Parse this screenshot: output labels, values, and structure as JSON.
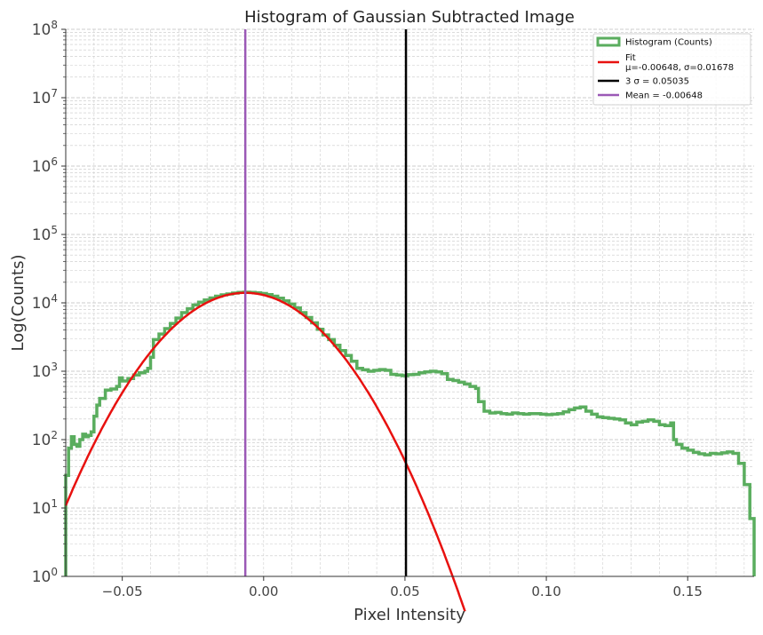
{
  "chart_data": {
    "type": "histogram",
    "title": "Histogram of Gaussian Subtracted Image",
    "xlabel": "Pixel Intensity",
    "ylabel": "Log(Counts)",
    "xlim": [
      -0.07,
      0.1735
    ],
    "ylim": [
      1,
      100000000
    ],
    "yscale": "log",
    "grid": true,
    "legend_position": "top-right",
    "x_ticks": [
      {
        "value": -0.05,
        "label": "−0.05"
      },
      {
        "value": 0.0,
        "label": "0.00"
      },
      {
        "value": 0.05,
        "label": "0.05"
      },
      {
        "value": 0.1,
        "label": "0.10"
      },
      {
        "value": 0.15,
        "label": "0.15"
      }
    ],
    "y_ticks": [
      {
        "exp": 0,
        "base": "10",
        "sup": "0"
      },
      {
        "exp": 1,
        "base": "10",
        "sup": "1"
      },
      {
        "exp": 2,
        "base": "10",
        "sup": "2"
      },
      {
        "exp": 3,
        "base": "10",
        "sup": "3"
      },
      {
        "exp": 4,
        "base": "10",
        "sup": "4"
      },
      {
        "exp": 5,
        "base": "10",
        "sup": "5"
      },
      {
        "exp": 6,
        "base": "10",
        "sup": "6"
      },
      {
        "exp": 7,
        "base": "10",
        "sup": "7"
      },
      {
        "exp": 8,
        "base": "10",
        "sup": "8"
      }
    ],
    "histogram": {
      "name": "Histogram (Counts)",
      "color": "#5aad5e",
      "bin_start": -0.07,
      "bin_width": 0.001,
      "points": [
        [
          -0.07,
          30
        ],
        [
          -0.069,
          75
        ],
        [
          -0.068,
          110
        ],
        [
          -0.067,
          85
        ],
        [
          -0.066,
          80
        ],
        [
          -0.065,
          100
        ],
        [
          -0.064,
          120
        ],
        [
          -0.063,
          110
        ],
        [
          -0.062,
          115
        ],
        [
          -0.061,
          130
        ],
        [
          -0.06,
          220
        ],
        [
          -0.059,
          320
        ],
        [
          -0.058,
          400
        ],
        [
          -0.056,
          530
        ],
        [
          -0.054,
          550
        ],
        [
          -0.052,
          600
        ],
        [
          -0.051,
          800
        ],
        [
          -0.05,
          720
        ],
        [
          -0.048,
          780
        ],
        [
          -0.046,
          880
        ],
        [
          -0.044,
          950
        ],
        [
          -0.042,
          1000
        ],
        [
          -0.041,
          1100
        ],
        [
          -0.04,
          1600
        ],
        [
          -0.039,
          2900
        ],
        [
          -0.037,
          3500
        ],
        [
          -0.035,
          4200
        ],
        [
          -0.033,
          5000
        ],
        [
          -0.031,
          6000
        ],
        [
          -0.029,
          7200
        ],
        [
          -0.027,
          8200
        ],
        [
          -0.025,
          9300
        ],
        [
          -0.023,
          10200
        ],
        [
          -0.021,
          11000
        ],
        [
          -0.019,
          11800
        ],
        [
          -0.017,
          12500
        ],
        [
          -0.015,
          13100
        ],
        [
          -0.013,
          13500
        ],
        [
          -0.011,
          13900
        ],
        [
          -0.009,
          14200
        ],
        [
          -0.007,
          14300
        ],
        [
          -0.005,
          14200
        ],
        [
          -0.003,
          14000
        ],
        [
          -0.001,
          13700
        ],
        [
          0.001,
          13200
        ],
        [
          0.003,
          12500
        ],
        [
          0.005,
          11700
        ],
        [
          0.007,
          10700
        ],
        [
          0.009,
          9600
        ],
        [
          0.011,
          8400
        ],
        [
          0.013,
          7200
        ],
        [
          0.015,
          6100
        ],
        [
          0.017,
          5100
        ],
        [
          0.019,
          4100
        ],
        [
          0.021,
          3400
        ],
        [
          0.023,
          2900
        ],
        [
          0.025,
          2400
        ],
        [
          0.027,
          2000
        ],
        [
          0.029,
          1700
        ],
        [
          0.031,
          1400
        ],
        [
          0.033,
          1100
        ],
        [
          0.035,
          1050
        ],
        [
          0.037,
          1000
        ],
        [
          0.039,
          1030
        ],
        [
          0.041,
          1060
        ],
        [
          0.043,
          1030
        ],
        [
          0.045,
          900
        ],
        [
          0.047,
          880
        ],
        [
          0.049,
          860
        ],
        [
          0.051,
          890
        ],
        [
          0.053,
          900
        ],
        [
          0.055,
          950
        ],
        [
          0.057,
          980
        ],
        [
          0.059,
          1000
        ],
        [
          0.061,
          980
        ],
        [
          0.063,
          920
        ],
        [
          0.065,
          760
        ],
        [
          0.067,
          730
        ],
        [
          0.069,
          690
        ],
        [
          0.071,
          650
        ],
        [
          0.073,
          600
        ],
        [
          0.075,
          560
        ],
        [
          0.076,
          360
        ],
        [
          0.078,
          260
        ],
        [
          0.08,
          245
        ],
        [
          0.082,
          250
        ],
        [
          0.084,
          240
        ],
        [
          0.086,
          235
        ],
        [
          0.088,
          245
        ],
        [
          0.09,
          240
        ],
        [
          0.092,
          235
        ],
        [
          0.094,
          240
        ],
        [
          0.096,
          240
        ],
        [
          0.098,
          235
        ],
        [
          0.1,
          232
        ],
        [
          0.102,
          235
        ],
        [
          0.104,
          240
        ],
        [
          0.106,
          255
        ],
        [
          0.108,
          275
        ],
        [
          0.11,
          290
        ],
        [
          0.112,
          300
        ],
        [
          0.114,
          260
        ],
        [
          0.116,
          235
        ],
        [
          0.118,
          215
        ],
        [
          0.12,
          210
        ],
        [
          0.122,
          205
        ],
        [
          0.124,
          200
        ],
        [
          0.126,
          195
        ],
        [
          0.128,
          175
        ],
        [
          0.13,
          165
        ],
        [
          0.132,
          180
        ],
        [
          0.134,
          185
        ],
        [
          0.136,
          195
        ],
        [
          0.138,
          185
        ],
        [
          0.14,
          165
        ],
        [
          0.142,
          160
        ],
        [
          0.144,
          175
        ],
        [
          0.145,
          100
        ],
        [
          0.146,
          85
        ],
        [
          0.148,
          75
        ],
        [
          0.15,
          70
        ],
        [
          0.152,
          65
        ],
        [
          0.154,
          62
        ],
        [
          0.156,
          60
        ],
        [
          0.158,
          63
        ],
        [
          0.16,
          62
        ],
        [
          0.162,
          64
        ],
        [
          0.164,
          66
        ],
        [
          0.166,
          63
        ],
        [
          0.168,
          45
        ],
        [
          0.17,
          22
        ],
        [
          0.172,
          7
        ],
        [
          0.1735,
          7
        ]
      ]
    },
    "fit": {
      "name_line1": "Fit",
      "name_line2": "μ=-0.00648, σ=0.01678",
      "color": "#e8110f",
      "mu": -0.00648,
      "sigma": 0.01678,
      "amplitude": 14000
    },
    "three_sigma_line": {
      "name": "3 σ  = 0.05035",
      "x": 0.05035,
      "color": "#000000"
    },
    "mean_line": {
      "name": "Mean = -0.00648",
      "x": -0.00648,
      "color": "#9b59b6"
    }
  }
}
